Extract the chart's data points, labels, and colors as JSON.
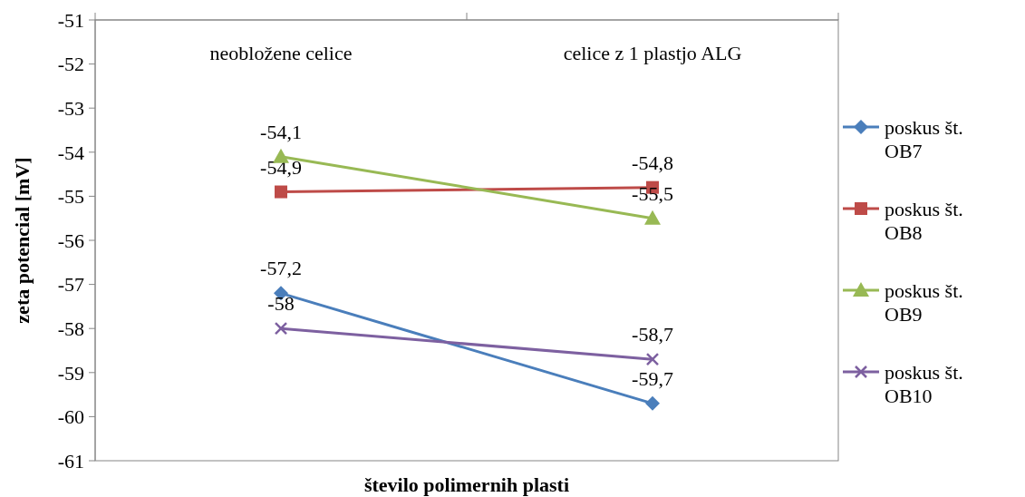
{
  "chart_data": {
    "type": "line",
    "xlabel": "število polimernih plasti",
    "ylabel": "zeta potencial [mV]",
    "categories": [
      "neobložene celice",
      "celice z 1 plastjo ALG"
    ],
    "ylim": [
      -61,
      -51
    ],
    "yticks": [
      -61,
      -60,
      -59,
      -58,
      -57,
      -56,
      -55,
      -54,
      -53,
      -52,
      -51
    ],
    "grid": false,
    "legend": "right",
    "series": [
      {
        "name": "poskus št. OB7",
        "color": "#4a7ebb",
        "marker": "diamond",
        "values": [
          -57.2,
          -59.7
        ],
        "value_labels": [
          "-57,2",
          "-59,7"
        ]
      },
      {
        "name": "poskus št. OB8",
        "color": "#be4b48",
        "marker": "square",
        "values": [
          -54.9,
          -54.8
        ],
        "value_labels": [
          "-54,9",
          "-54,8"
        ]
      },
      {
        "name": "poskus št. OB9",
        "color": "#98b954",
        "marker": "triangle",
        "values": [
          -54.1,
          -55.5
        ],
        "value_labels": [
          "-54,1",
          "-55,5"
        ]
      },
      {
        "name": "poskus št. OB10",
        "color": "#7d60a0",
        "marker": "cross",
        "values": [
          -58,
          -58.7
        ],
        "value_labels": [
          "-58",
          "-58,7"
        ]
      }
    ]
  }
}
